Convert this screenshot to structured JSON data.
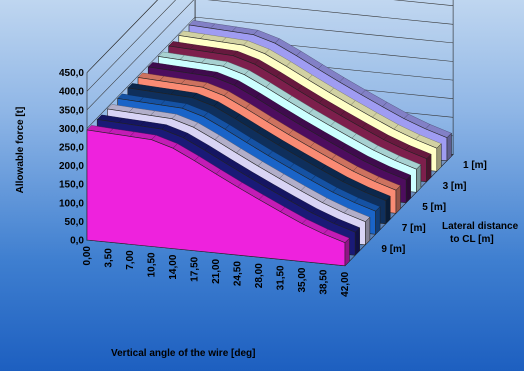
{
  "chart_data": {
    "type": "area",
    "subtype": "3d-ribbon",
    "title": "",
    "xlabel": "Vertical angle of the wire [deg]",
    "ylabel": "Allowable force [t]",
    "zlabel": "Lateral distance to CL [m]",
    "zlabel_lines": [
      "Lateral distance",
      "to CL [m]"
    ],
    "ylim": [
      0,
      450
    ],
    "y_ticks": [
      "0,0",
      "50,0",
      "100,0",
      "150,0",
      "200,0",
      "250,0",
      "300,0",
      "350,0",
      "400,0",
      "450,0"
    ],
    "x_ticks": [
      "0,00",
      "3,50",
      "7,00",
      "10,50",
      "14,00",
      "17,50",
      "21,00",
      "24,50",
      "28,00",
      "31,50",
      "35,00",
      "38,50",
      "42,00"
    ],
    "z_ticks": [
      "1 [m]",
      "3 [m]",
      "5 [m]",
      "7 [m]",
      "9 [m]"
    ],
    "x": [
      0,
      3.5,
      7,
      10.5,
      14,
      17.5,
      21,
      24.5,
      28,
      31.5,
      35,
      38.5,
      42
    ],
    "series": [
      {
        "color": "#ee22dd",
        "values": [
          296,
          293,
          290,
          287,
          270,
          242,
          212,
          183,
          155,
          128,
          102,
          80,
          62
        ]
      },
      {
        "color": "#1a1a77",
        "values": [
          296,
          293,
          290,
          287,
          270,
          242,
          212,
          183,
          155,
          128,
          102,
          80,
          62
        ]
      },
      {
        "color": "#d9d4f5",
        "values": [
          296,
          293,
          290,
          287,
          270,
          242,
          212,
          183,
          155,
          128,
          102,
          80,
          62
        ]
      },
      {
        "color": "#1a64c8",
        "values": [
          296,
          293,
          290,
          287,
          270,
          242,
          212,
          183,
          155,
          128,
          102,
          80,
          62
        ]
      },
      {
        "color": "#0f2f5c",
        "values": [
          296,
          293,
          290,
          287,
          270,
          242,
          212,
          183,
          155,
          128,
          102,
          80,
          62
        ]
      },
      {
        "color": "#fa8b74",
        "values": [
          296,
          293,
          290,
          287,
          270,
          242,
          212,
          183,
          155,
          128,
          102,
          80,
          62
        ]
      },
      {
        "color": "#4d0d5e",
        "values": [
          296,
          293,
          290,
          287,
          270,
          242,
          212,
          183,
          155,
          128,
          102,
          80,
          62
        ]
      },
      {
        "color": "#ccffff",
        "values": [
          296,
          293,
          290,
          287,
          270,
          242,
          212,
          183,
          155,
          128,
          102,
          80,
          62
        ]
      },
      {
        "color": "#7d1f4c",
        "values": [
          296,
          293,
          290,
          287,
          270,
          242,
          212,
          183,
          155,
          128,
          102,
          80,
          62
        ]
      },
      {
        "color": "#ffffc6",
        "values": [
          296,
          293,
          290,
          287,
          270,
          242,
          212,
          183,
          155,
          128,
          102,
          80,
          62
        ]
      },
      {
        "color": "#9f9cf2",
        "values": [
          296,
          293,
          290,
          287,
          270,
          242,
          212,
          183,
          155,
          128,
          102,
          80,
          62
        ]
      }
    ]
  }
}
